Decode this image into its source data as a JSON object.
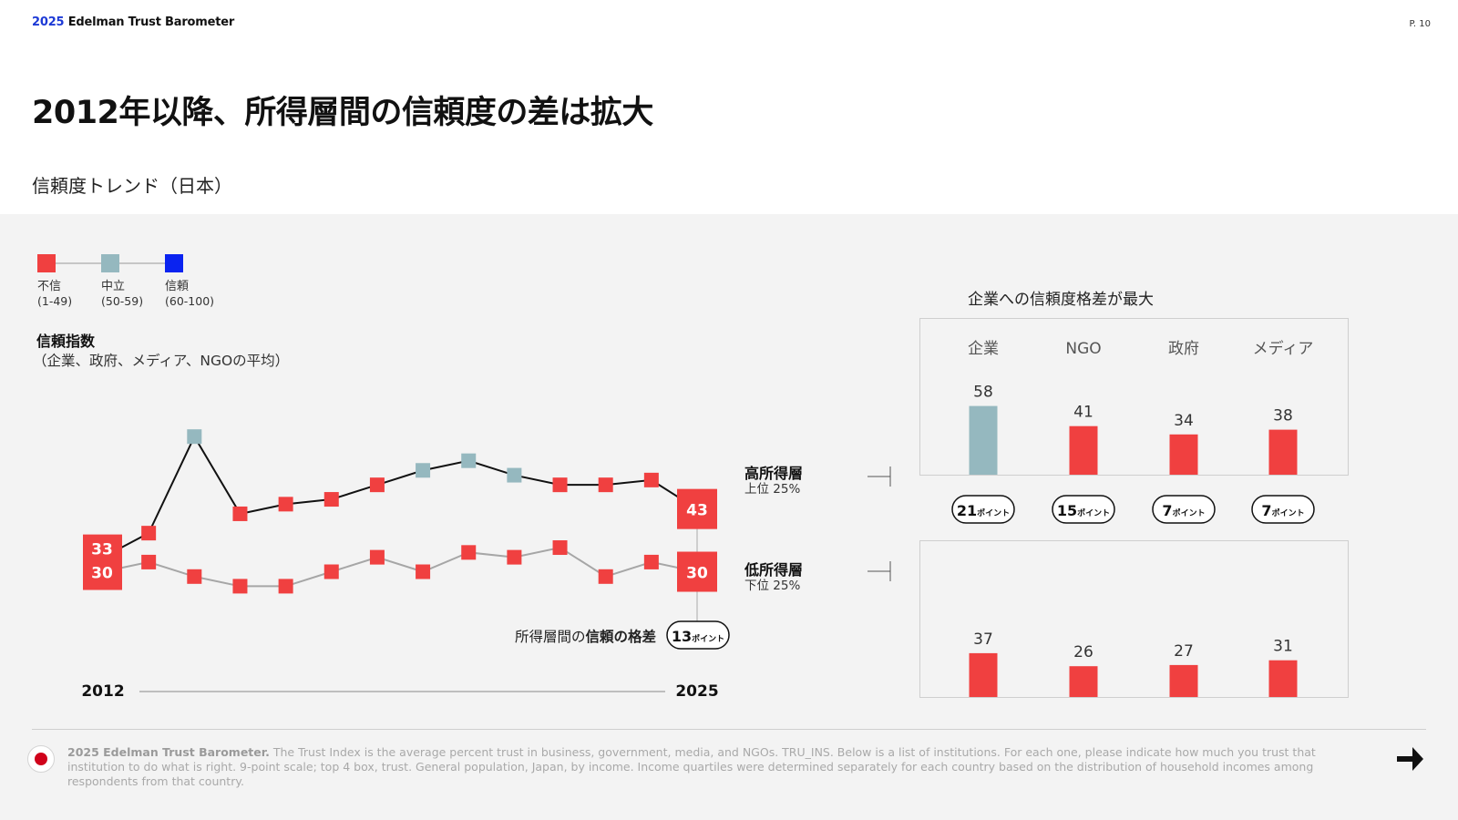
{
  "header": {
    "brand_year": "2025",
    "brand_name": " Edelman Trust Barometer",
    "page": "P. 10"
  },
  "title": "2012年以降、所得層間の信頼度の差は拡大",
  "subtitle": "信頼度トレンド（日本）",
  "legend": [
    {
      "label": "不信",
      "range": "(1-49)",
      "color": "#f04040"
    },
    {
      "label": "中立",
      "range": "(50-59)",
      "color": "#95b8bf"
    },
    {
      "label": "信頼",
      "range": "(60-100)",
      "color": "#0a23f0"
    }
  ],
  "chart_data": [
    {
      "type": "line",
      "title": "信頼指数",
      "subtitle": "（企業、政府、メディア、NGOの平均）",
      "xlabel_start": "2012",
      "xlabel_end": "2025",
      "ylim": [
        25,
        62
      ],
      "series": [
        {
          "name": "高所得層",
          "sublabel": "上位 25%",
          "values": [
            33,
            38,
            58,
            42,
            44,
            45,
            48,
            51,
            53,
            50,
            48,
            48,
            49,
            43
          ]
        },
        {
          "name": "低所得層",
          "sublabel": "下位 25%",
          "values": [
            30,
            32,
            29,
            27,
            27,
            30,
            33,
            30,
            34,
            33,
            35,
            29,
            32,
            30
          ]
        }
      ],
      "start_label": [
        "33",
        "30"
      ],
      "end_labels": {
        "high": "43",
        "low": "30"
      },
      "gap_label": {
        "prefix": "所得層間の",
        "bold": "信頼の格差",
        "value": "13",
        "unit": "ポイント"
      }
    },
    {
      "type": "bar",
      "title": "企業への信頼度格差が最大",
      "categories": [
        "企業",
        "NGO",
        "政府",
        "メディア"
      ],
      "series": [
        {
          "name": "高所得層",
          "values": [
            58,
            41,
            34,
            38
          ]
        },
        {
          "name": "低所得層",
          "values": [
            37,
            26,
            27,
            31
          ]
        }
      ],
      "gaps": [
        {
          "value": "21",
          "unit": "ポイント"
        },
        {
          "value": "15",
          "unit": "ポイント"
        },
        {
          "value": "7",
          "unit": "ポイント"
        },
        {
          "value": "7",
          "unit": "ポイント"
        }
      ]
    }
  ],
  "footnote": {
    "bold": "2025 Edelman Trust Barometer.",
    "text": " The Trust Index is the average percent trust in business, government, media, and NGOs. TRU_INS. Below is a list of institutions. For each one, please indicate how much you trust that institution to do what is right. 9-point scale; top 4 box, trust. General population, Japan, by income. Income quartiles were determined separately for each country based on the distribution of household incomes among respondents from that country."
  },
  "next_icon": "arrow-next-icon"
}
